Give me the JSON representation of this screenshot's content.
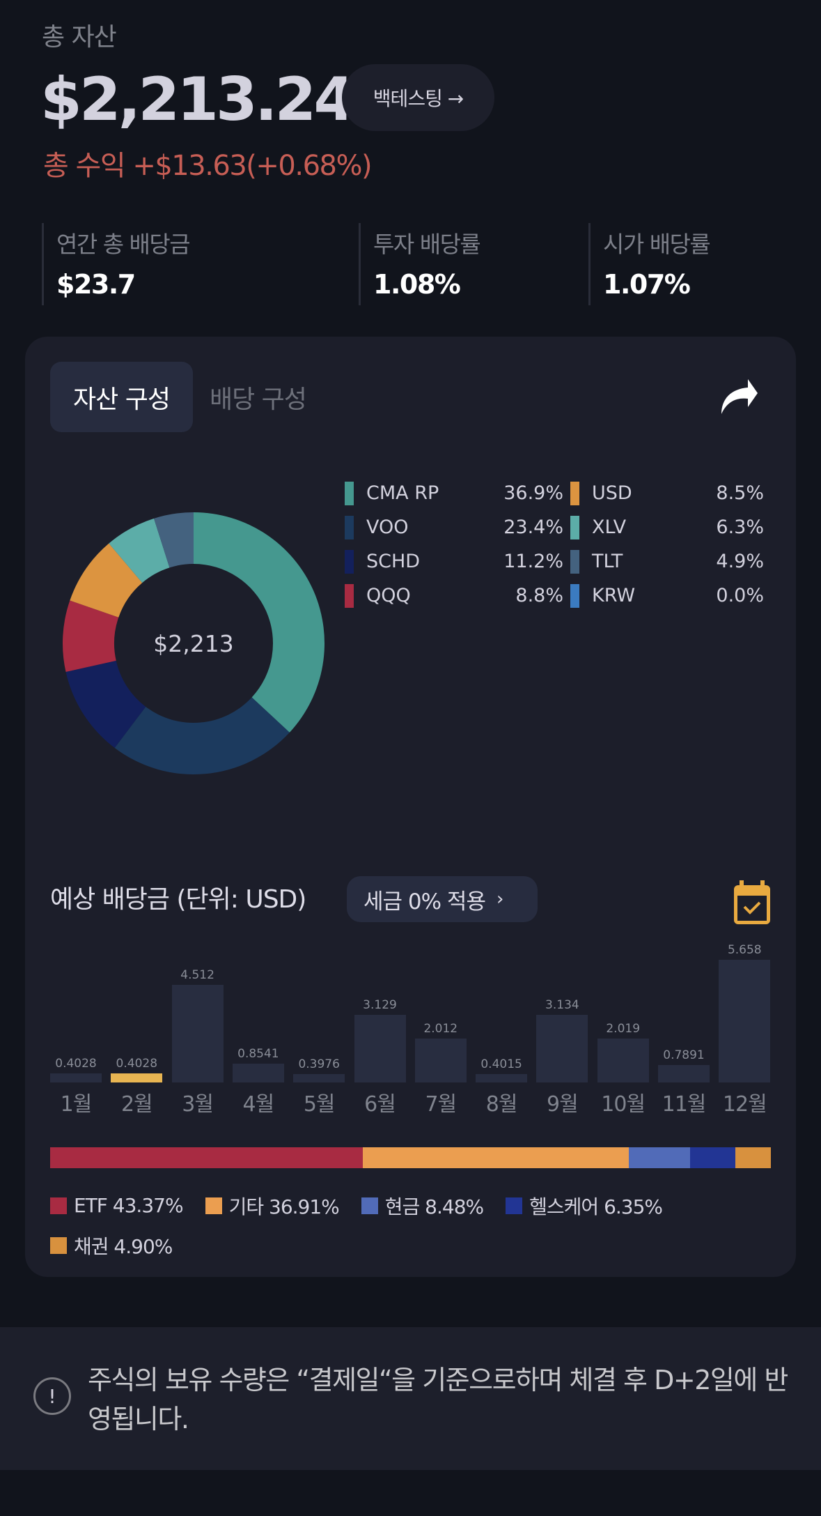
{
  "header": {
    "total_label": "총 자산",
    "total_value": "$2,213.24",
    "backtest_button": "백테스팅 →",
    "profit_text": "총 수익 +$13.63(+0.68%)"
  },
  "stats": [
    {
      "label": "연간 총 배당금",
      "value": "$23.7"
    },
    {
      "label": "투자 배당률",
      "value": "1.08%"
    },
    {
      "label": "시가 배당률",
      "value": "1.07%"
    }
  ],
  "card": {
    "tabs": [
      {
        "label": "자산 구성",
        "active": true
      },
      {
        "label": "배당 구성",
        "active": false
      }
    ],
    "share_icon": "share-arrow-icon",
    "donut_center": "$2,213",
    "holdings": [
      {
        "name": "CMA RP",
        "percent": "36.9%",
        "value": 36.9,
        "color": "#45988f"
      },
      {
        "name": "VOO",
        "percent": "23.4%",
        "value": 23.4,
        "color": "#1c3a5e"
      },
      {
        "name": "SCHD",
        "percent": "11.2%",
        "value": 11.2,
        "color": "#13205c"
      },
      {
        "name": "QQQ",
        "percent": "8.8%",
        "value": 8.8,
        "color": "#a82b42"
      },
      {
        "name": "USD",
        "percent": "8.5%",
        "value": 8.5,
        "color": "#dc9440"
      },
      {
        "name": "XLV",
        "percent": "6.3%",
        "value": 6.3,
        "color": "#5cada8"
      },
      {
        "name": "TLT",
        "percent": "4.9%",
        "value": 4.9,
        "color": "#44627f"
      },
      {
        "name": "KRW",
        "percent": "0.0%",
        "value": 0.0,
        "color": "#3b7bc0"
      }
    ]
  },
  "dividends": {
    "title": "예상 배당금 (단위: USD)",
    "tax_chip": "세금 0% 적용",
    "tax_chip_chevron": "›",
    "calendar_icon": "calendar-check-icon",
    "highlight_color": "#e8b552",
    "bar_color": "#282d40"
  },
  "categories": [
    {
      "label": "ETF 43.37%",
      "value": 43.37,
      "color": "#a82b42"
    },
    {
      "label": "기타 36.91%",
      "value": 36.91,
      "color": "#eb9e50"
    },
    {
      "label": "현금 8.48%",
      "value": 8.48,
      "color": "#516bb8"
    },
    {
      "label": "헬스케어 6.35%",
      "value": 6.35,
      "color": "#223594"
    },
    {
      "label": "채권 4.90%",
      "value": 4.9,
      "color": "#d8913e"
    }
  ],
  "notice": {
    "icon": "exclamation-circle-icon",
    "text": "주식의 보유 수량은 “결제일“을 기준으로하며 체결 후 D+2일에 반영됩니다."
  },
  "chart_data": [
    {
      "type": "pie",
      "title": "자산 구성",
      "center_label": "$2,213",
      "categories": [
        "CMA RP",
        "VOO",
        "SCHD",
        "QQQ",
        "USD",
        "XLV",
        "TLT",
        "KRW"
      ],
      "values": [
        36.9,
        23.4,
        11.2,
        8.8,
        8.5,
        6.3,
        4.9,
        0.0
      ],
      "legend_position": "right"
    },
    {
      "type": "bar",
      "title": "예상 배당금 (단위: USD)",
      "categories": [
        "1월",
        "2월",
        "3월",
        "4월",
        "5월",
        "6월",
        "7월",
        "8월",
        "9월",
        "10월",
        "11월",
        "12월"
      ],
      "values": [
        0.4028,
        0.4028,
        4.512,
        0.8541,
        0.3976,
        3.129,
        2.012,
        0.4015,
        3.134,
        2.019,
        0.7891,
        5.658
      ],
      "labels": [
        "0.4028",
        "0.4028",
        "4.512",
        "0.8541",
        "0.3976",
        "3.129",
        "2.012",
        "0.4015",
        "3.134",
        "2.019",
        "0.7891",
        "5.658"
      ],
      "highlighted_index": 1,
      "xlabel": "",
      "ylabel": "USD",
      "grid": false
    },
    {
      "type": "bar",
      "title": "카테고리 구성 (stacked 100%)",
      "categories": [
        "ETF",
        "기타",
        "현금",
        "헬스케어",
        "채권"
      ],
      "values": [
        43.37,
        36.91,
        8.48,
        6.35,
        4.9
      ],
      "legend_position": "bottom"
    }
  ]
}
